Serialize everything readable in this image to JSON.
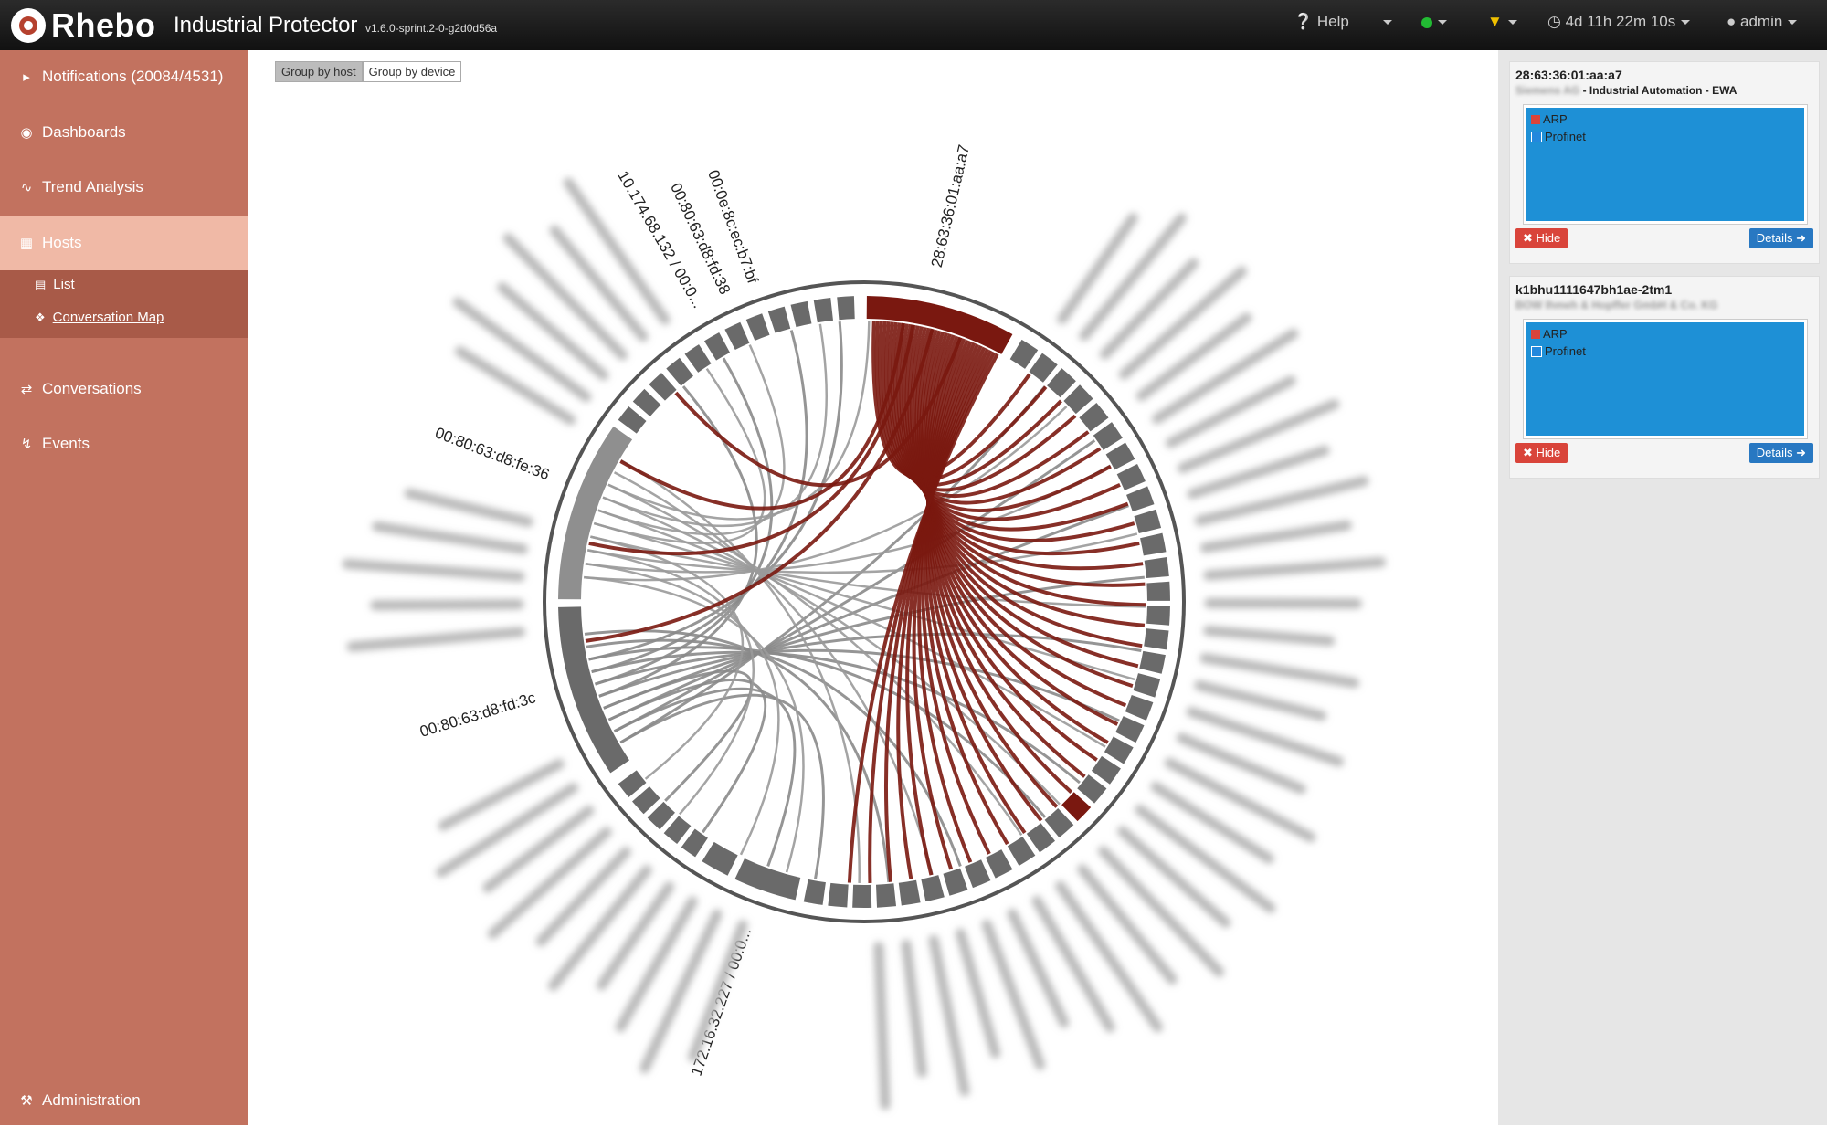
{
  "header": {
    "brand": "Rhebo",
    "product": "Industrial Protector",
    "version": "v1.6.0-sprint.2-0-g2d0d56a",
    "help": "Help",
    "uptime": "4d 11h 22m 10s",
    "user": "admin"
  },
  "colors": {
    "status": "#22bb33",
    "filter": "#f0c000",
    "accent": "#7a1810"
  },
  "sidebar": {
    "items": [
      {
        "label": "Notifications (20084/4531)",
        "icon": "bullhorn-icon"
      },
      {
        "label": "Dashboards",
        "icon": "dashboard-icon"
      },
      {
        "label": "Trend Analysis",
        "icon": "line-chart-icon"
      },
      {
        "label": "Hosts",
        "icon": "sitemap-icon"
      },
      {
        "label": "Conversations",
        "icon": "exchange-icon"
      },
      {
        "label": "Events",
        "icon": "bolt-icon"
      }
    ],
    "sub": [
      {
        "label": "List",
        "icon": "list-icon"
      },
      {
        "label": "Conversation Map",
        "icon": "network-icon"
      }
    ],
    "admin": "Administration"
  },
  "toolbar": {
    "group_host": "Group by host",
    "group_device": "Group by device"
  },
  "chart_data": {
    "type": "chord",
    "labels": [
      {
        "text": "28:63:36:01:aa:a7"
      },
      {
        "text": "00:0e:8c:ec:b7:bf"
      },
      {
        "text": "00:80:63:d8:fd:38"
      },
      {
        "text": "10.174.68.132 / 00:0..."
      },
      {
        "text": "00:80:63:d8:fe:36"
      },
      {
        "text": "00:80:63:d8:fd:3c"
      },
      {
        "text": "172.16.32.227 / 00:0..."
      }
    ]
  },
  "panel": {
    "cards": [
      {
        "title": "28:63:36:01:aa:a7",
        "sub_blur": "Siemens AG",
        "sub": " - Industrial Automation - EWA",
        "legend": [
          "ARP",
          "Profinet"
        ],
        "hide": "Hide",
        "details": "Details"
      },
      {
        "title": "k1bhu1111647bh1ae-2tm1",
        "sub_blur": "BOW Ihmeh & Hopffer GmbH & Co. KG",
        "sub": "",
        "legend": [
          "ARP",
          "Profinet"
        ],
        "hide": "Hide",
        "details": "Details"
      }
    ]
  }
}
